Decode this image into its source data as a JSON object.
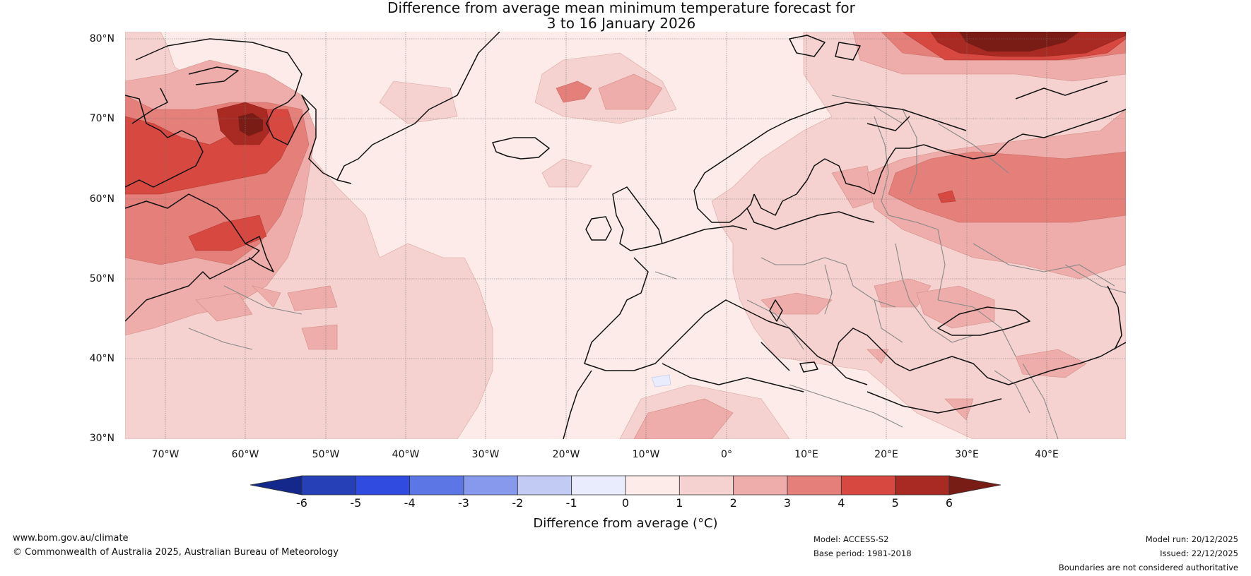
{
  "title": {
    "line1": "Difference from average mean minimum temperature forecast for",
    "line2": "3 to 16 January 2026"
  },
  "map": {
    "lat_labels": [
      "80°N",
      "70°N",
      "60°N",
      "50°N",
      "40°N",
      "30°N"
    ],
    "lon_labels": [
      "70°W",
      "60°W",
      "50°W",
      "40°W",
      "30°W",
      "20°W",
      "10°W",
      "0°",
      "10°E",
      "20°E",
      "30°E",
      "40°E"
    ]
  },
  "colorbar": {
    "ticks": [
      "-6",
      "-5",
      "-4",
      "-3",
      "-2",
      "-1",
      "0",
      "1",
      "2",
      "3",
      "4",
      "5",
      "6"
    ],
    "colors": [
      "#13288a",
      "#2640b8",
      "#2f4be0",
      "#5d76e6",
      "#8799ec",
      "#c2cbf4",
      "#e8ecfc",
      "#fcebe8",
      "#f5d2cf",
      "#eeadaa",
      "#e47f79",
      "#d74840",
      "#a82a22",
      "#7a1c16"
    ],
    "label": "Difference from average (°C)"
  },
  "footer": {
    "website": "www.bom.gov.au/climate",
    "copyright": "© Commonwealth of Australia 2025, Australian Bureau of Meteorology",
    "model": "Model: ACCESS-S2",
    "base_period": "Base period: 1981-2018",
    "model_run": "Model run: 20/12/2025",
    "issued": "Issued: 22/12/2025",
    "disclaimer": "Boundaries are not considered authoritative"
  }
}
